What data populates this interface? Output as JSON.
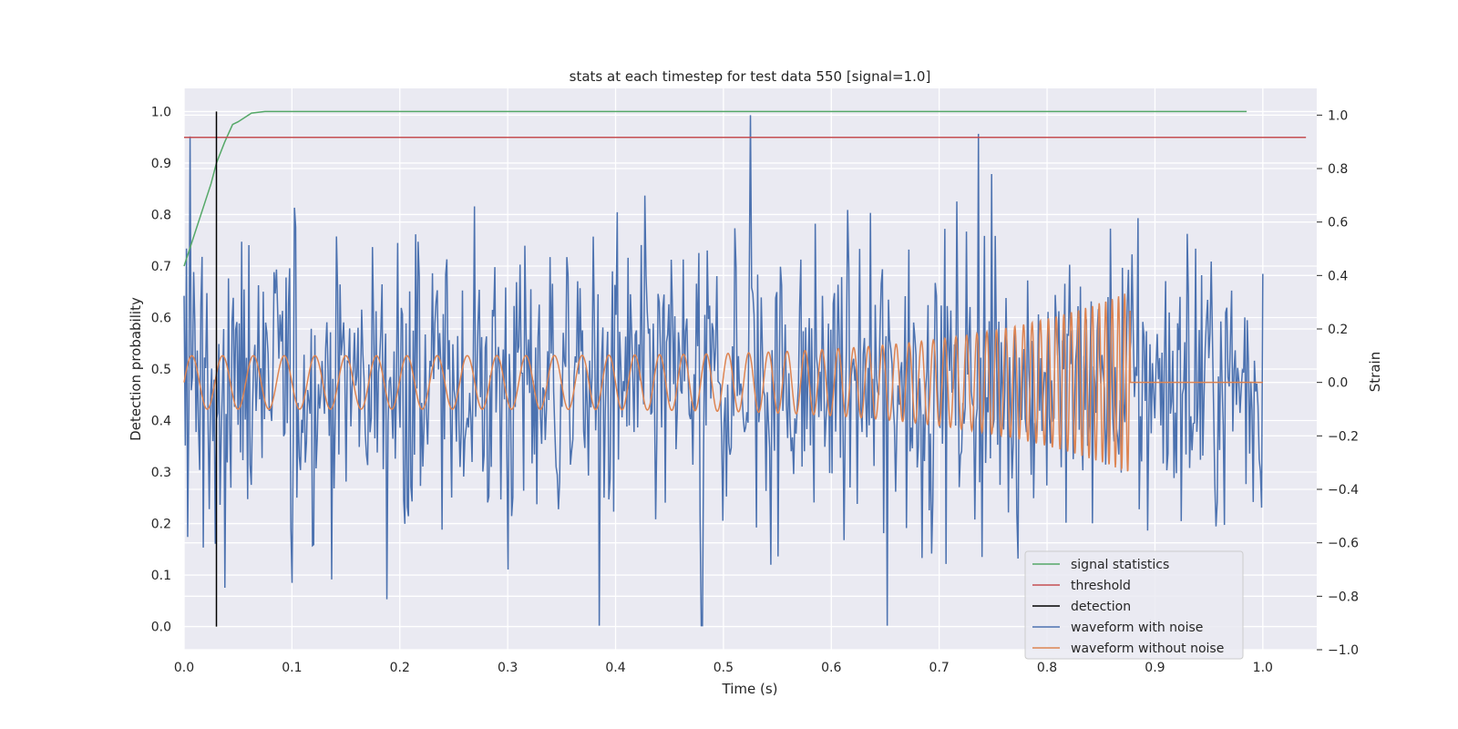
{
  "chart_data": {
    "type": "line",
    "title": "stats at each timestep for test data 550 [signal=1.0]",
    "xlabel": "Time (s)",
    "ylabel": "Detection probability",
    "y2label": "Strain",
    "xlim": [
      0.0,
      1.05
    ],
    "ylim": [
      -0.045,
      1.045
    ],
    "y2lim": [
      -1.0,
      1.1
    ],
    "grid": true,
    "background": "#eaeaf2",
    "legend_position": "lower right",
    "x_ticks": [
      "0.0",
      "0.1",
      "0.2",
      "0.3",
      "0.4",
      "0.5",
      "0.6",
      "0.7",
      "0.8",
      "0.9",
      "1.0"
    ],
    "y_ticks": [
      "0.0",
      "0.1",
      "0.2",
      "0.3",
      "0.4",
      "0.5",
      "0.6",
      "0.7",
      "0.8",
      "0.9",
      "1.0"
    ],
    "y2_ticks": [
      "−1.0",
      "−0.8",
      "−0.6",
      "−0.4",
      "−0.2",
      "0.0",
      "0.2",
      "0.4",
      "0.6",
      "0.8",
      "1.0"
    ],
    "legend": [
      {
        "label": "signal statistics",
        "color": "#55a868"
      },
      {
        "label": "threshold",
        "color": "#c44e52"
      },
      {
        "label": "detection",
        "color": "#000000"
      },
      {
        "label": "waveform with noise",
        "color": "#4c72b0"
      },
      {
        "label": "waveform without noise",
        "color": "#dd8452"
      }
    ],
    "series": [
      {
        "name": "signal statistics",
        "axis": "left",
        "color": "#55a868",
        "x": [
          0.0,
          0.0125,
          0.025,
          0.03,
          0.0375,
          0.045,
          0.05,
          0.0625,
          0.075,
          0.1,
          0.2,
          0.3,
          0.4,
          0.5,
          0.6,
          0.7,
          0.8,
          0.9,
          0.985
        ],
        "y": [
          0.7,
          0.78,
          0.86,
          0.9,
          0.94,
          0.975,
          0.98,
          0.997,
          1.0,
          1.0,
          1.0,
          1.0,
          1.0,
          1.0,
          1.0,
          1.0,
          1.0,
          1.0,
          1.0
        ]
      },
      {
        "name": "threshold",
        "axis": "left",
        "color": "#c44e52",
        "x": [
          0.0,
          1.04
        ],
        "y": [
          0.95,
          0.95
        ]
      },
      {
        "name": "detection",
        "axis": "left",
        "color": "#000000",
        "x": [
          0.03,
          0.03
        ],
        "y": [
          0.0,
          1.0
        ]
      },
      {
        "name": "waveform with noise",
        "axis": "right",
        "color": "#4c72b0",
        "x_range": [
          0.0,
          1.0
        ],
        "samples": 900,
        "amplitude_std": 0.28,
        "peaks": [
          [
            0.006,
            0.92
          ],
          [
            0.525,
            1.0
          ],
          [
            0.736,
            0.93
          ],
          [
            0.385,
            -0.91
          ],
          [
            0.48,
            -0.91
          ],
          [
            0.652,
            -0.91
          ],
          [
            0.1,
            -0.75
          ],
          [
            0.3,
            -0.7
          ]
        ]
      },
      {
        "name": "waveform without noise",
        "axis": "right",
        "color": "#dd8452",
        "x_range": [
          0.0,
          1.0
        ],
        "amplitude_start": 0.1,
        "amplitude_end": 0.34,
        "frequency_start_hz": 35,
        "frequency_end_hz": 180,
        "merger_time": 0.877,
        "post_merger_value": 0.0
      }
    ]
  }
}
